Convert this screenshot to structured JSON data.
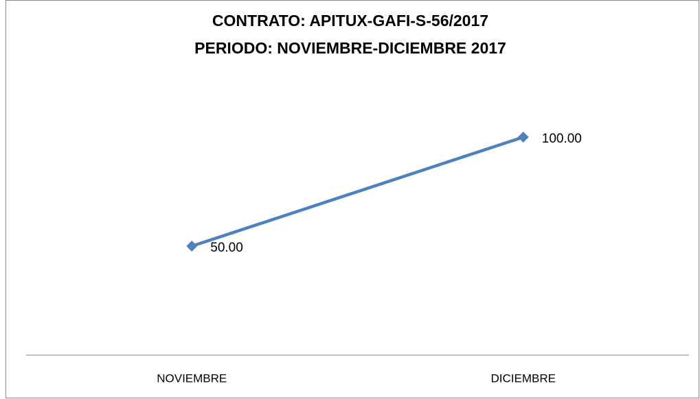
{
  "chart_data": {
    "type": "line",
    "title": [
      "CONTRATO: APITUX-GAFI-S-56/2017",
      "PERIODO: NOVIEMBRE-DICIEMBRE 2017"
    ],
    "categories": [
      "NOVIEMBRE",
      "DICIEMBRE"
    ],
    "series": [
      {
        "color": "#4f81bd",
        "values": [
          50,
          100
        ],
        "value_labels": [
          "50.00",
          "100.00"
        ]
      }
    ],
    "ylim": [
      0,
      120
    ]
  }
}
